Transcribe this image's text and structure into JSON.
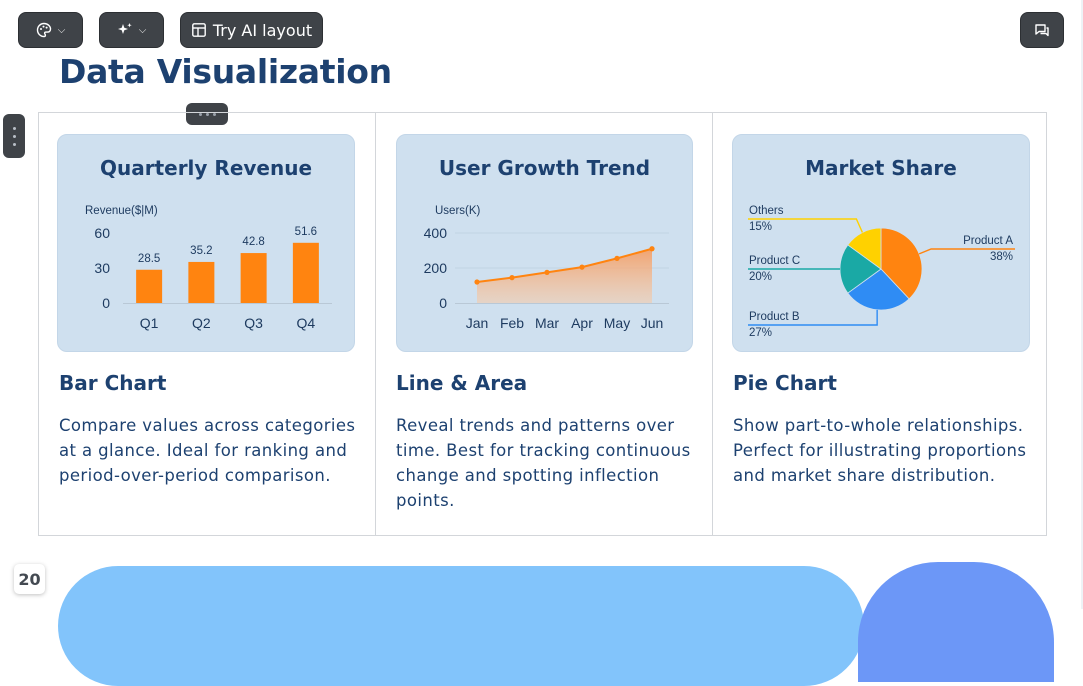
{
  "toolbar": {
    "ai_layout_label": "Try AI layout",
    "icons": [
      "palette-icon",
      "sparkle-icon",
      "layout-icon",
      "chat-icon"
    ]
  },
  "page": {
    "title": "Data Visualization",
    "number": "20"
  },
  "cards": [
    {
      "title": "Quarterly Revenue",
      "heading": "Bar Chart",
      "description": "Compare values across categories at a glance. Ideal for ranking and period-over-period comparison."
    },
    {
      "title": "User Growth Trend",
      "heading": "Line & Area",
      "description": "Reveal trends and patterns over time. Best for tracking continuous change and spotting inflection points."
    },
    {
      "title": "Market Share",
      "heading": "Pie Chart",
      "description": "Show part-to-whole relationships. Perfect for illustrating proportions and market share distribution."
    }
  ],
  "chart_data": [
    {
      "type": "bar",
      "title": "Quarterly Revenue",
      "ylabel": "Revenue($|M)",
      "categories": [
        "Q1",
        "Q2",
        "Q3",
        "Q4"
      ],
      "values": [
        28.5,
        35.2,
        42.8,
        51.6
      ],
      "yticks": [
        0,
        30,
        60
      ],
      "ylim": [
        0,
        60
      ],
      "color": "#ff8410"
    },
    {
      "type": "area",
      "title": "User Growth Trend",
      "ylabel": "Users(K)",
      "categories": [
        "Jan",
        "Feb",
        "Mar",
        "Apr",
        "May",
        "Jun"
      ],
      "values": [
        120,
        145,
        175,
        205,
        255,
        310
      ],
      "yticks": [
        0,
        200,
        400
      ],
      "ylim": [
        0,
        400
      ],
      "color": "#ff8410"
    },
    {
      "type": "pie",
      "title": "Market Share",
      "slices": [
        {
          "name": "Product A",
          "percent_label": "38%",
          "value": 38,
          "color": "#ff8410"
        },
        {
          "name": "Product B",
          "percent_label": "27%",
          "value": 27,
          "color": "#2f8cf4"
        },
        {
          "name": "Product C",
          "percent_label": "20%",
          "value": 20,
          "color": "#1aa9a5"
        },
        {
          "name": "Others",
          "percent_label": "15%",
          "value": 15,
          "color": "#ffd100"
        }
      ]
    }
  ]
}
